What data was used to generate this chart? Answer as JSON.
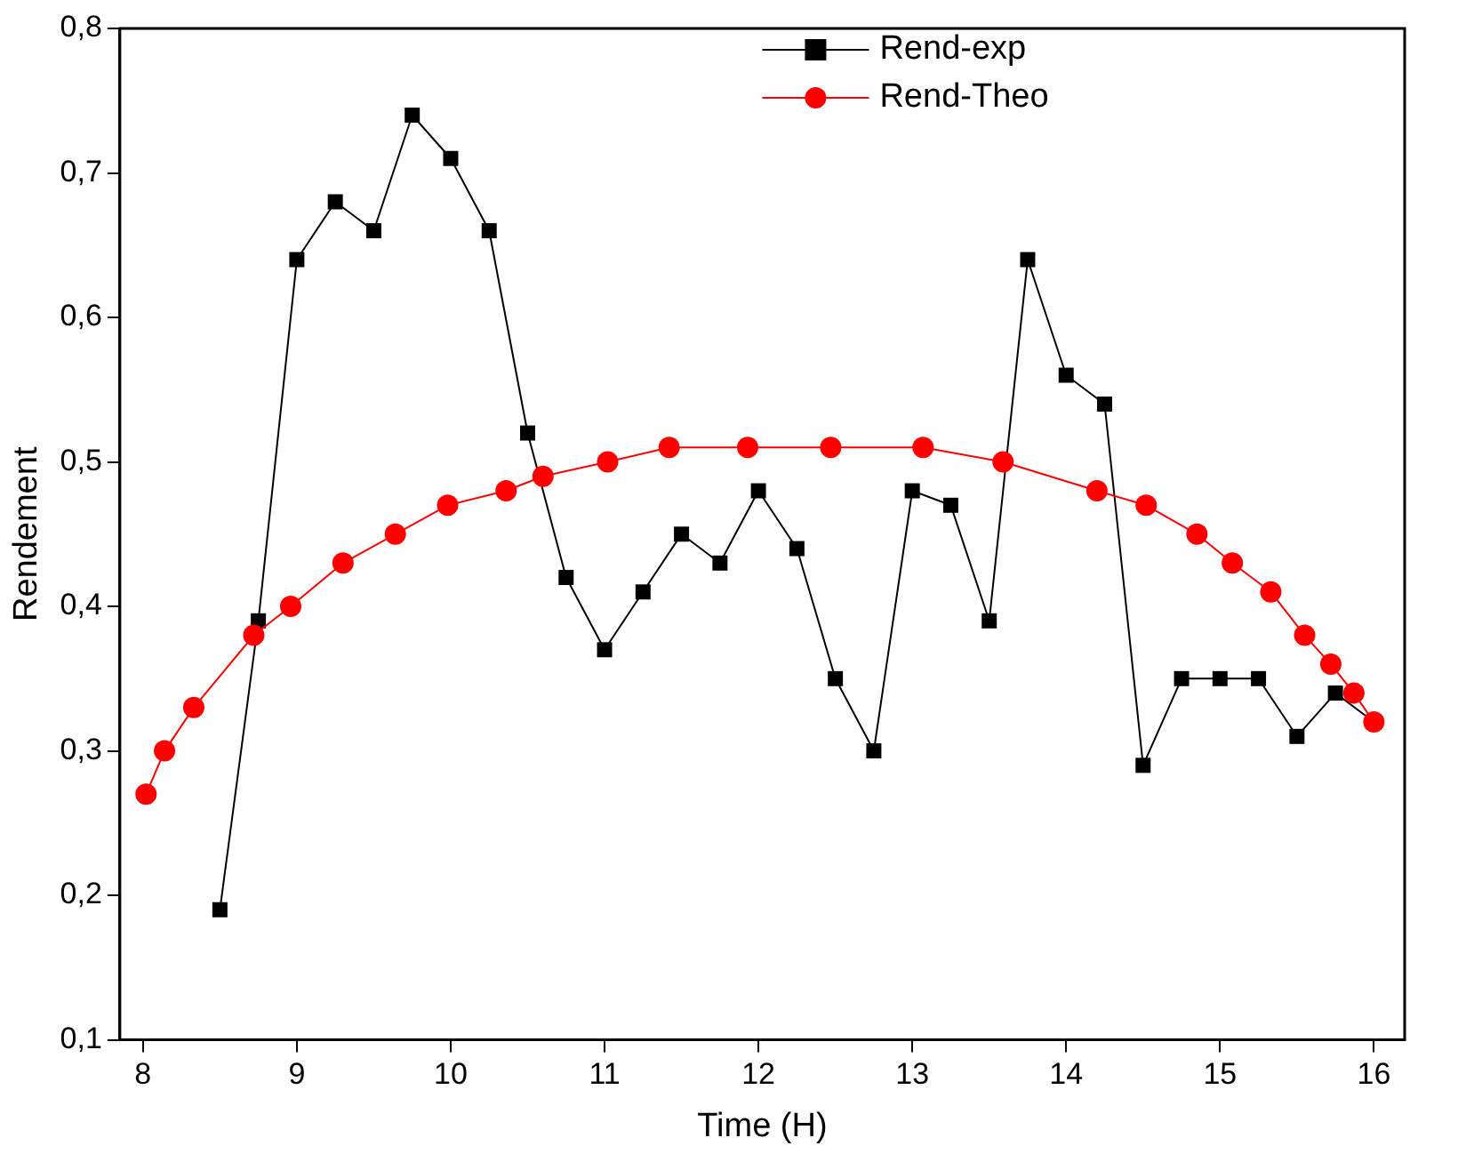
{
  "chart_data": {
    "type": "line",
    "xlabel": "Time (H)",
    "ylabel": "Rendement",
    "xlim": [
      7.85,
      16.2
    ],
    "xticks": [
      8,
      9,
      10,
      11,
      12,
      13,
      14,
      15,
      16
    ],
    "ylim": [
      0.1,
      0.8
    ],
    "yticks": [
      {
        "value": 0.1,
        "label": "0,1"
      },
      {
        "value": 0.2,
        "label": "0,2"
      },
      {
        "value": 0.3,
        "label": "0,3"
      },
      {
        "value": 0.4,
        "label": "0,4"
      },
      {
        "value": 0.5,
        "label": "0,5"
      },
      {
        "value": 0.6,
        "label": "0,6"
      },
      {
        "value": 0.7,
        "label": "0,7"
      },
      {
        "value": 0.8,
        "label": "0,8"
      }
    ],
    "grid": false,
    "legend": "top right",
    "line_style": "solid",
    "series": [
      {
        "name": "Rend-exp",
        "color": "#000000",
        "marker": "square",
        "x": [
          8.5,
          8.75,
          9,
          9.25,
          9.5,
          9.75,
          10,
          10.25,
          10.5,
          10.75,
          11,
          11.25,
          11.5,
          11.75,
          12,
          12.25,
          12.5,
          12.75,
          13,
          13.25,
          13.5,
          13.75,
          14,
          14.25,
          14.5,
          14.75,
          15,
          15.25,
          15.5,
          15.75,
          16
        ],
        "values": [
          0.19,
          0.39,
          0.64,
          0.68,
          0.66,
          0.74,
          0.71,
          0.66,
          0.52,
          0.42,
          0.37,
          0.41,
          0.45,
          0.43,
          0.48,
          0.44,
          0.35,
          0.3,
          0.48,
          0.47,
          0.39,
          0.64,
          0.56,
          0.54,
          0.29,
          0.35,
          0.35,
          0.35,
          0.31,
          0.34,
          0.32
        ]
      },
      {
        "name": "Rend-Theo",
        "color": "#ff0000",
        "marker": "circle",
        "x": [
          8.02,
          8.14,
          8.33,
          8.72,
          8.96,
          9.3,
          9.64,
          9.98,
          10.36,
          10.6,
          11.02,
          11.42,
          11.93,
          12.47,
          13.07,
          13.59,
          14.2,
          14.52,
          14.85,
          15.08,
          15.33,
          15.55,
          15.72,
          15.87,
          16
        ],
        "values": [
          0.27,
          0.3,
          0.33,
          0.38,
          0.4,
          0.43,
          0.45,
          0.47,
          0.48,
          0.49,
          0.5,
          0.51,
          0.51,
          0.51,
          0.51,
          0.5,
          0.48,
          0.47,
          0.45,
          0.43,
          0.41,
          0.38,
          0.36,
          0.34,
          0.32
        ]
      }
    ]
  }
}
